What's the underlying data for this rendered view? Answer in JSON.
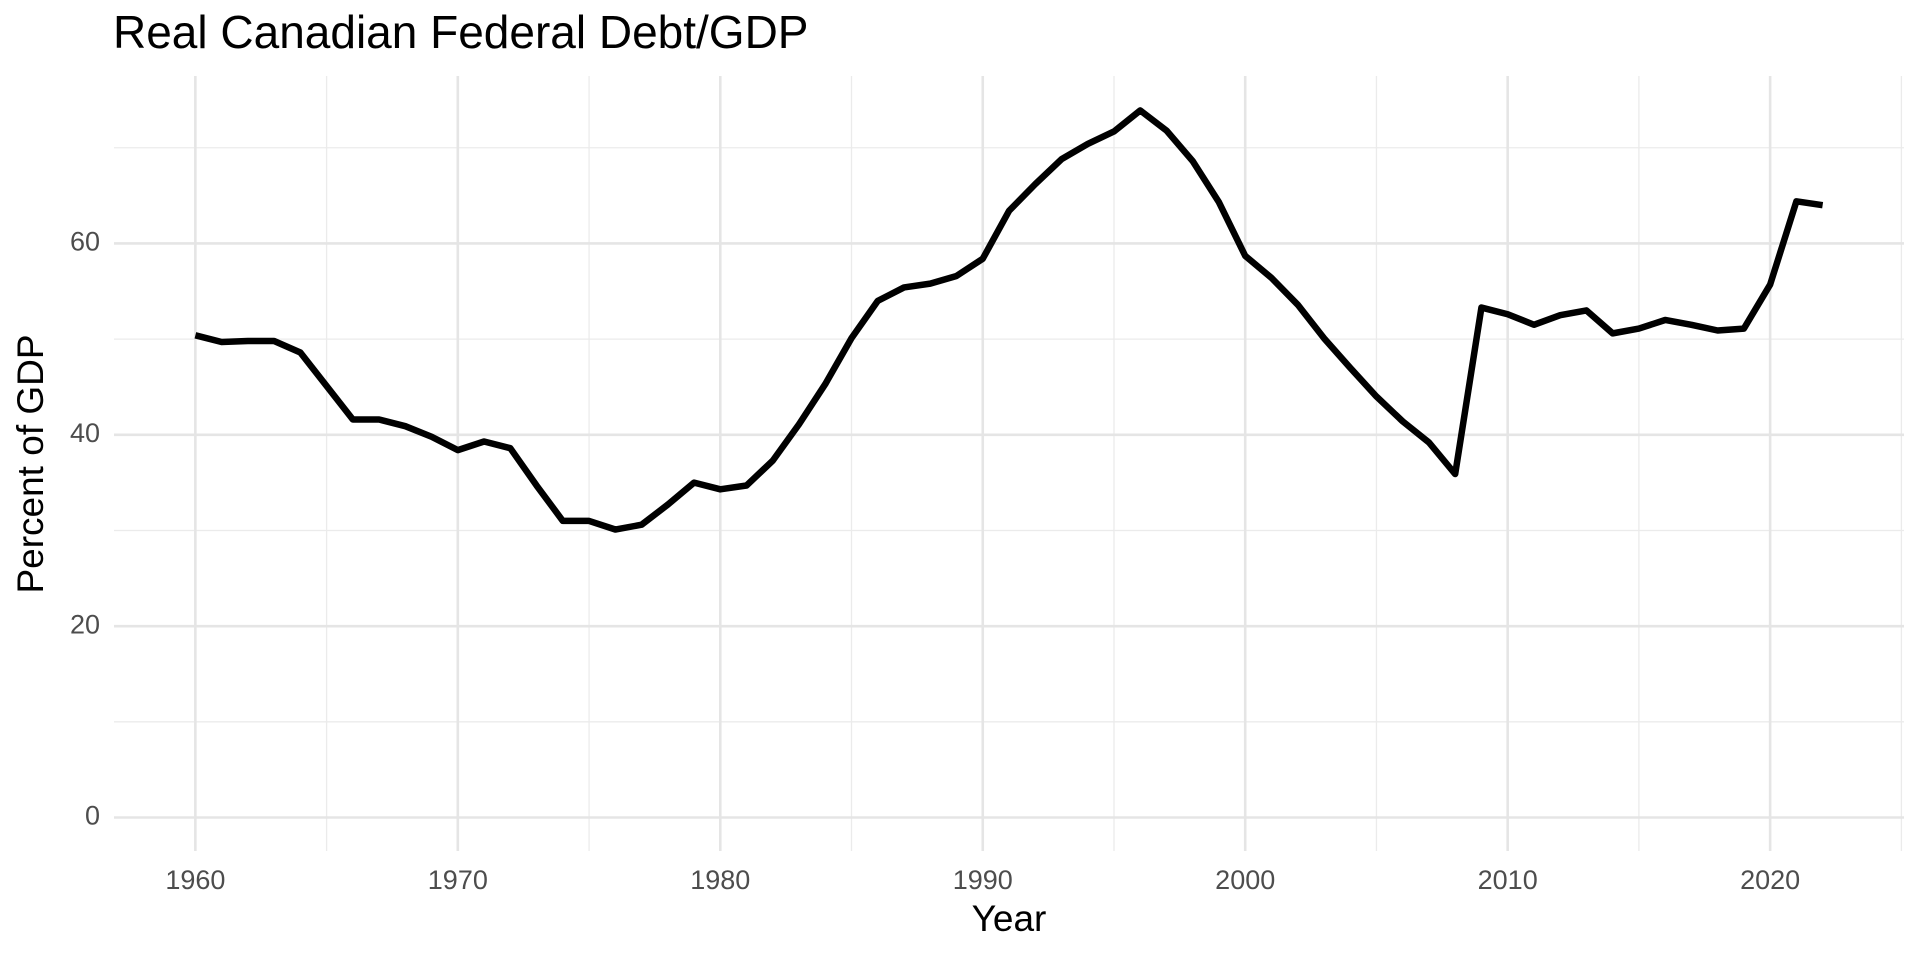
{
  "chart_data": {
    "type": "line",
    "title": "Real Canadian Federal Debt/GDP",
    "x_label": "Year",
    "y_label": "Percent of GDP",
    "x": [
      1960,
      1961,
      1962,
      1963,
      1964,
      1965,
      1966,
      1967,
      1968,
      1969,
      1970,
      1971,
      1972,
      1973,
      1974,
      1975,
      1976,
      1977,
      1978,
      1979,
      1980,
      1981,
      1982,
      1983,
      1984,
      1985,
      1986,
      1987,
      1988,
      1989,
      1990,
      1991,
      1992,
      1993,
      1994,
      1995,
      1996,
      1997,
      1998,
      1999,
      2000,
      2001,
      2002,
      2003,
      2004,
      2005,
      2006,
      2007,
      2008,
      2009,
      2010,
      2011,
      2012,
      2013,
      2014,
      2015,
      2016,
      2017,
      2018,
      2019,
      2020,
      2021,
      2022
    ],
    "series": [
      {
        "name": "Debt/GDP",
        "color": "#000000",
        "values": [
          50.4,
          49.7,
          49.8,
          49.8,
          48.6,
          45.1,
          41.6,
          41.6,
          40.9,
          39.8,
          38.4,
          39.3,
          38.6,
          34.7,
          31.0,
          31.0,
          30.1,
          30.6,
          32.7,
          35.0,
          34.3,
          34.7,
          37.3,
          41.1,
          45.3,
          50.1,
          54.0,
          55.4,
          55.8,
          56.6,
          58.4,
          63.4,
          66.2,
          68.8,
          70.4,
          71.7,
          73.9,
          71.8,
          68.6,
          64.3,
          58.7,
          56.4,
          53.6,
          50.1,
          47.0,
          44.0,
          41.4,
          39.2,
          35.9,
          53.3,
          52.6,
          51.5,
          52.5,
          53.0,
          50.6,
          51.1,
          52.0,
          51.5,
          50.9,
          51.1,
          55.7,
          64.4,
          64.0
        ]
      }
    ],
    "xlim": [
      1956.9,
      2025.1
    ],
    "ylim": [
      -3.5,
      77.5
    ],
    "xticks": [
      1960,
      1970,
      1980,
      1990,
      2000,
      2010,
      2020
    ],
    "yticks": [
      0,
      20,
      40,
      60
    ],
    "xminor": [
      1965,
      1975,
      1985,
      1995,
      2005,
      2015,
      2025
    ],
    "yminor": [
      10,
      30,
      50,
      70
    ],
    "grid": true
  }
}
